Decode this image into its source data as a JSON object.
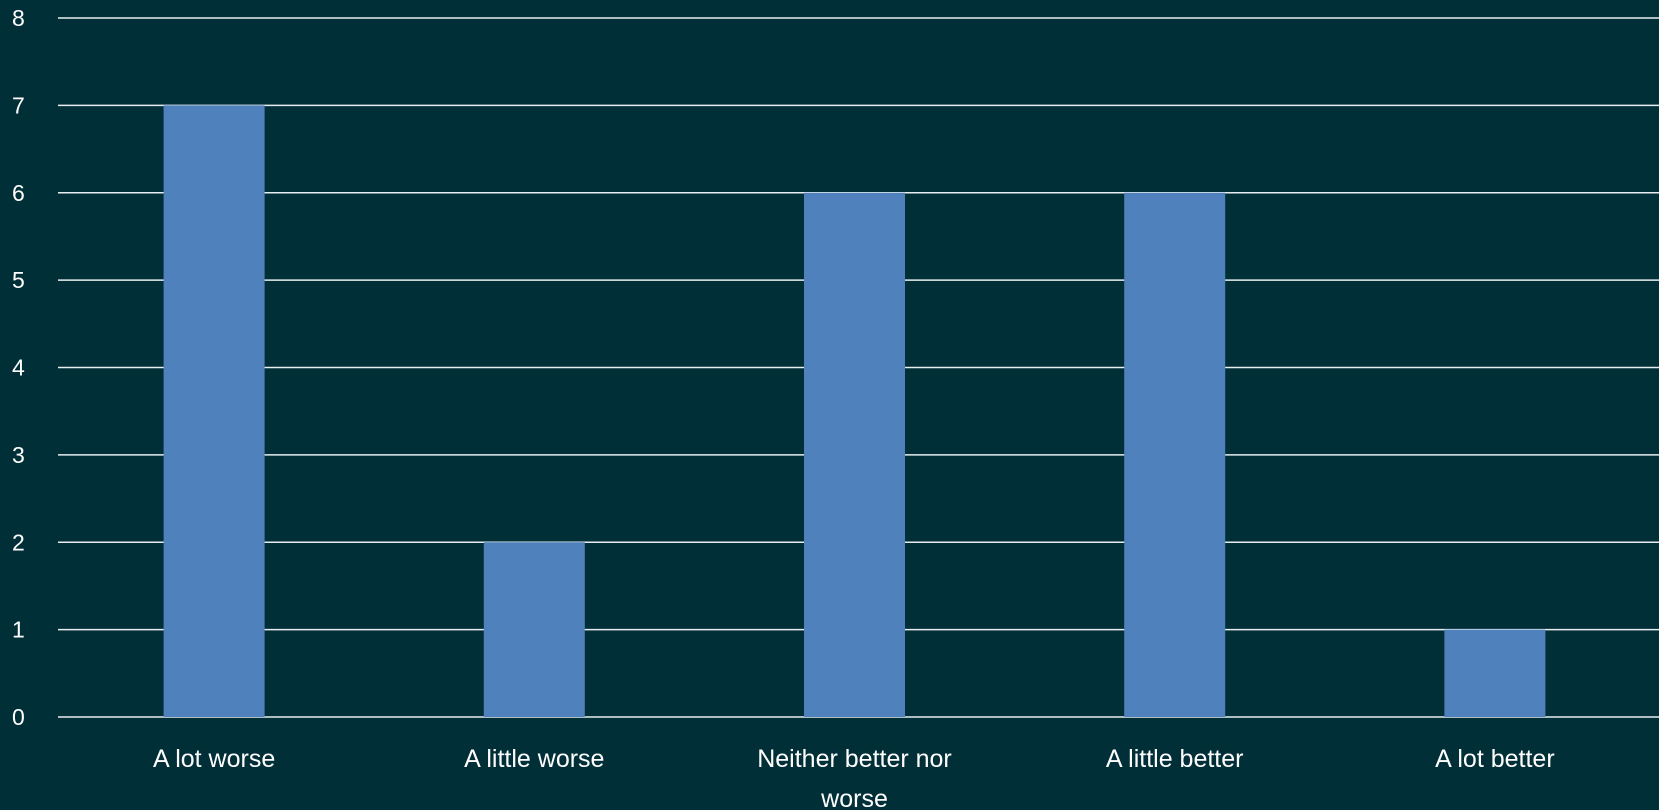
{
  "chart_data": {
    "type": "bar",
    "categories": [
      "A lot worse",
      "A little worse",
      "Neither better nor worse",
      "A little better",
      "A lot better"
    ],
    "values": [
      7,
      2,
      6,
      6,
      1
    ],
    "title": "",
    "xlabel": "",
    "ylabel": "",
    "ylim": [
      0,
      8
    ],
    "yticks": [
      0,
      1,
      2,
      3,
      4,
      5,
      6,
      7,
      8
    ],
    "grid": true,
    "legend": "none",
    "colors": {
      "background": "#012f38",
      "bar": "#4f81bd",
      "gridline": "#e8eef0",
      "text": "#ffffff"
    }
  }
}
